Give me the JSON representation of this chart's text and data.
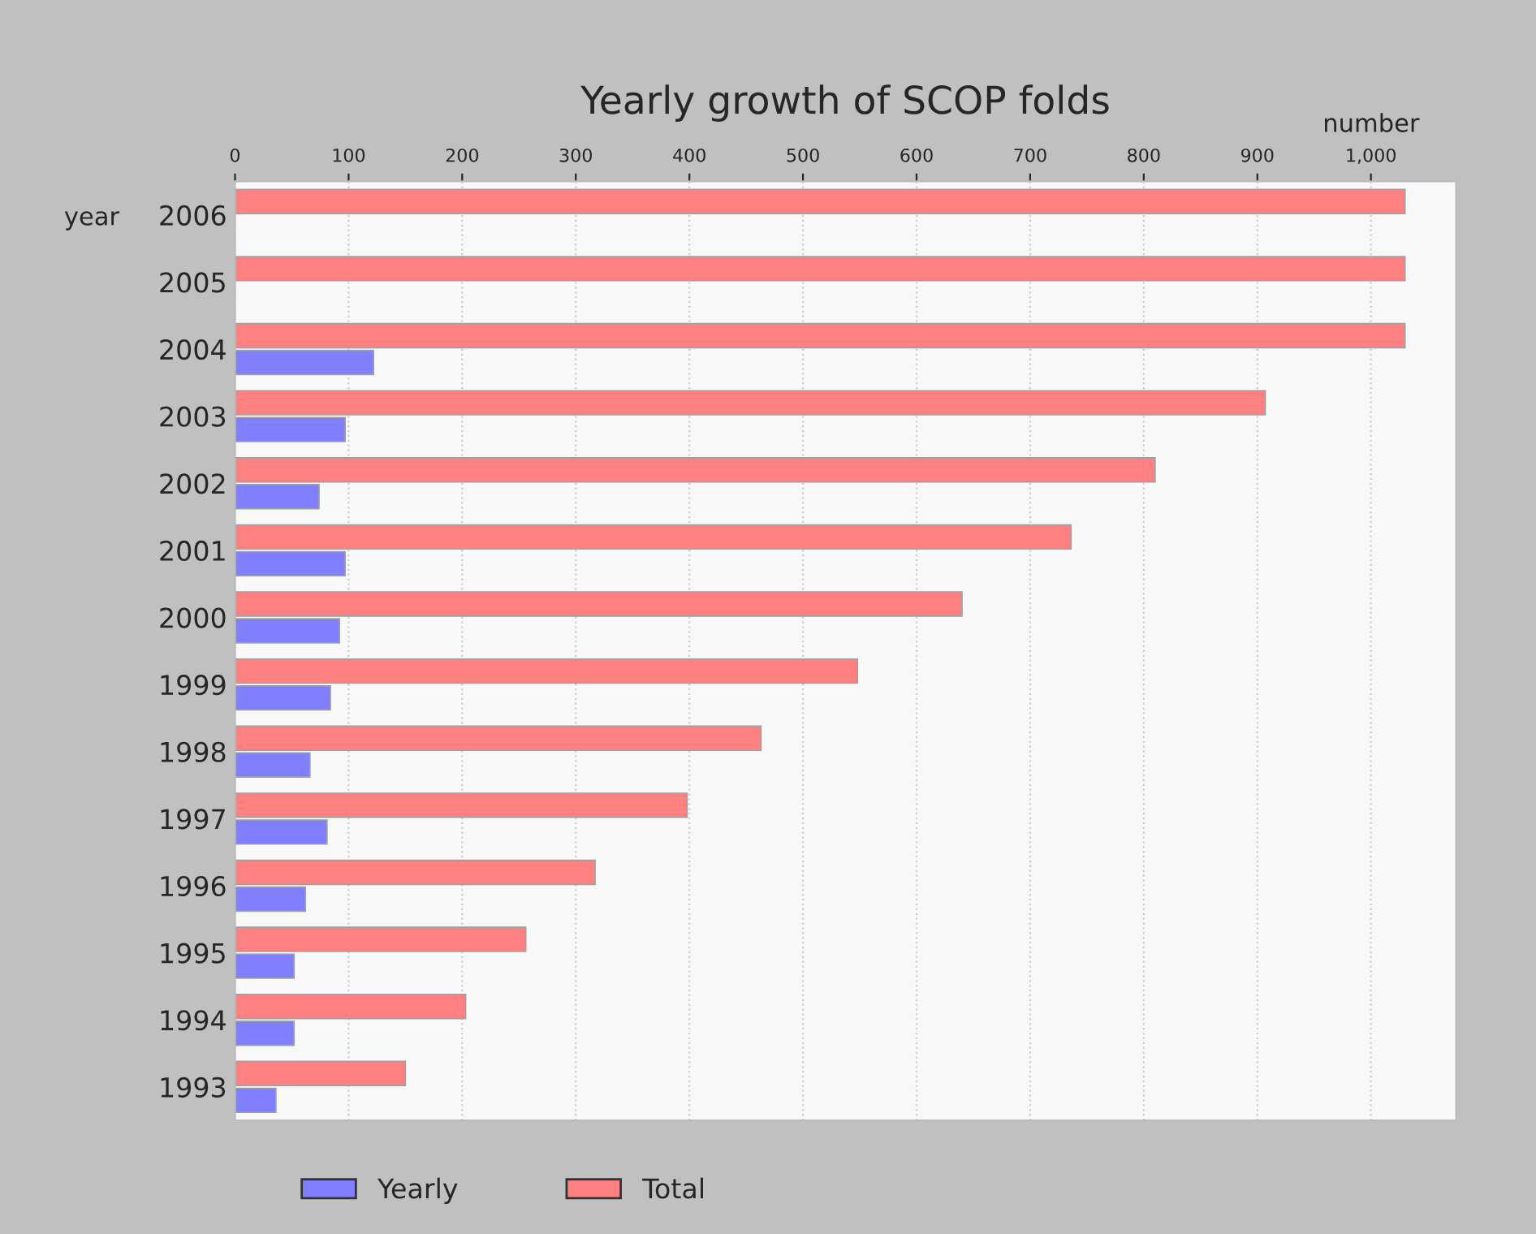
{
  "chart_data": {
    "type": "bar",
    "orientation": "horizontal",
    "title": "Yearly growth of SCOP folds",
    "xlabel": "number",
    "ylabel": "year",
    "categories": [
      "2006",
      "2005",
      "2004",
      "2003",
      "2002",
      "2001",
      "2000",
      "1999",
      "1998",
      "1997",
      "1996",
      "1995",
      "1994",
      "1993"
    ],
    "series": [
      {
        "name": "Yearly",
        "color": "#8080ff",
        "values": [
          null,
          null,
          122,
          97,
          74,
          97,
          92,
          84,
          66,
          81,
          62,
          52,
          52,
          36
        ]
      },
      {
        "name": "Total",
        "color": "#ff8080",
        "values": [
          1030,
          1030,
          1030,
          907,
          810,
          736,
          640,
          548,
          463,
          398,
          317,
          256,
          203,
          150
        ]
      }
    ],
    "xlim": [
      0,
      1075
    ],
    "xticks": [
      0,
      100,
      200,
      300,
      400,
      500,
      600,
      700,
      800,
      900,
      {
        "value": 1000,
        "label": "1,000"
      }
    ],
    "grid": "x",
    "legend": "bottom"
  }
}
